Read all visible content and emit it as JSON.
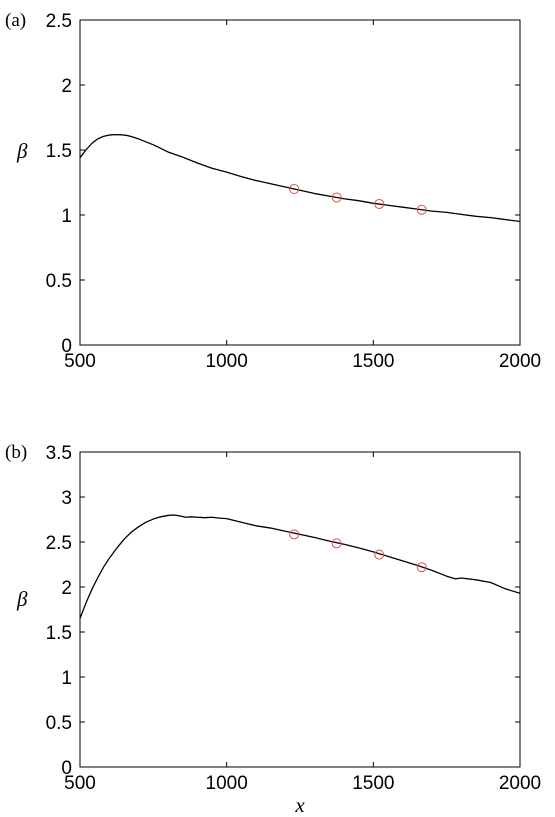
{
  "chart_data": [
    {
      "type": "line",
      "panel_label": "(a)",
      "xlabel": "",
      "ylabel": "β",
      "xlim": [
        500,
        2000
      ],
      "ylim": [
        0,
        2.5
      ],
      "xticks": [
        500,
        1000,
        1500,
        2000
      ],
      "xtick_labels": [
        "500",
        "1000",
        "1500",
        "2000"
      ],
      "yticks": [
        0,
        0.5,
        1,
        1.5,
        2,
        2.5
      ],
      "ytick_labels": [
        "0",
        "0.5",
        "1",
        "1.5",
        "2",
        "2.5"
      ],
      "grid": false,
      "line_color": "#000000",
      "series": [
        {
          "x": [
            500,
            520,
            540,
            560,
            580,
            600,
            620,
            640,
            660,
            680,
            700,
            750,
            800,
            850,
            900,
            950,
            1000,
            1050,
            1100,
            1150,
            1200,
            1250,
            1300,
            1350,
            1400,
            1450,
            1500,
            1550,
            1600,
            1650,
            1700,
            1750,
            1800,
            1850,
            1900,
            1950,
            2000
          ],
          "y": [
            1.44,
            1.5,
            1.55,
            1.585,
            1.605,
            1.615,
            1.618,
            1.617,
            1.612,
            1.6,
            1.585,
            1.54,
            1.485,
            1.445,
            1.4,
            1.36,
            1.33,
            1.295,
            1.265,
            1.24,
            1.215,
            1.19,
            1.165,
            1.145,
            1.125,
            1.11,
            1.09,
            1.075,
            1.06,
            1.045,
            1.03,
            1.02,
            1.005,
            0.99,
            0.98,
            0.965,
            0.95
          ]
        }
      ],
      "markers": {
        "color": "#e05050",
        "x": [
          1230,
          1375,
          1520,
          1665
        ],
        "y": [
          1.2,
          1.135,
          1.085,
          1.04
        ]
      }
    },
    {
      "type": "line",
      "panel_label": "(b)",
      "xlabel": "x",
      "ylabel": "β",
      "xlim": [
        500,
        2000
      ],
      "ylim": [
        0,
        3.5
      ],
      "xticks": [
        500,
        1000,
        1500,
        2000
      ],
      "xtick_labels": [
        "500",
        "1000",
        "1500",
        "2000"
      ],
      "yticks": [
        0,
        0.5,
        1,
        1.5,
        2,
        2.5,
        3,
        3.5
      ],
      "ytick_labels": [
        "0",
        "0.5",
        "1",
        "1.5",
        "2",
        "2.5",
        "3",
        "3.5"
      ],
      "grid": false,
      "line_color": "#000000",
      "series": [
        {
          "x": [
            500,
            520,
            540,
            560,
            580,
            600,
            625,
            650,
            675,
            700,
            725,
            750,
            775,
            800,
            820,
            840,
            860,
            880,
            900,
            925,
            950,
            975,
            1000,
            1050,
            1100,
            1150,
            1200,
            1250,
            1300,
            1350,
            1400,
            1450,
            1500,
            1550,
            1600,
            1650,
            1700,
            1750,
            1780,
            1800,
            1850,
            1900,
            1950,
            2000
          ],
          "y": [
            1.65,
            1.82,
            1.97,
            2.1,
            2.22,
            2.32,
            2.43,
            2.53,
            2.61,
            2.67,
            2.72,
            2.755,
            2.78,
            2.795,
            2.8,
            2.79,
            2.775,
            2.78,
            2.775,
            2.77,
            2.775,
            2.765,
            2.76,
            2.72,
            2.68,
            2.655,
            2.62,
            2.585,
            2.55,
            2.51,
            2.475,
            2.435,
            2.39,
            2.34,
            2.29,
            2.24,
            2.185,
            2.12,
            2.09,
            2.1,
            2.08,
            2.05,
            1.98,
            1.93
          ]
        }
      ],
      "markers": {
        "color": "#e05050",
        "x": [
          1230,
          1375,
          1520,
          1665
        ],
        "y": [
          2.585,
          2.485,
          2.36,
          2.22
        ]
      }
    }
  ]
}
